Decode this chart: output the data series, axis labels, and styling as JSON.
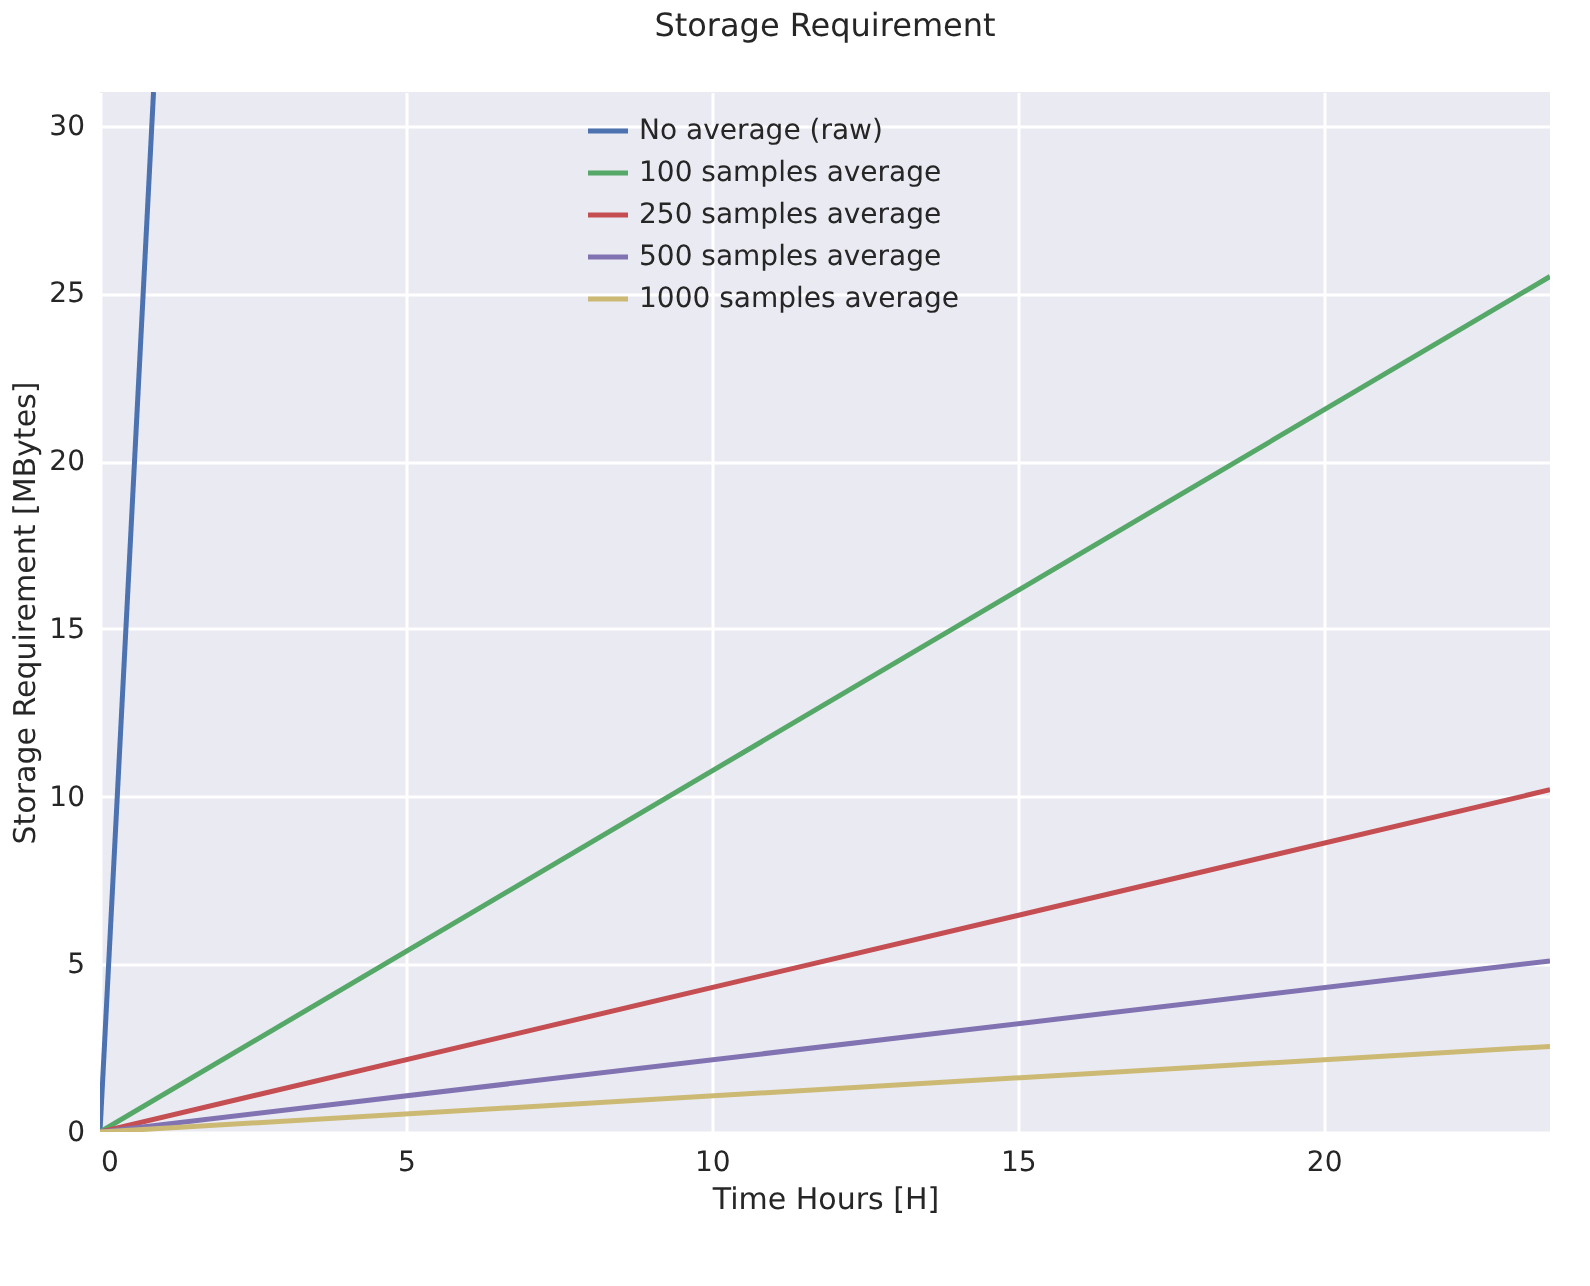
{
  "chart_data": {
    "type": "line",
    "title": "Storage Requirement",
    "xlabel": "Time Hours [H]",
    "ylabel": "Storage Requirement [MBytes]",
    "x": [
      0,
      23.7
    ],
    "xlim": [
      0,
      23.7
    ],
    "ylim": [
      0,
      31
    ],
    "xticks": [
      0,
      5,
      10,
      15,
      20
    ],
    "yticks": [
      0,
      5,
      10,
      15,
      20,
      25,
      30
    ],
    "grid": true,
    "legend": "top",
    "marker": "none",
    "line_style": "solid",
    "series": [
      {
        "name": "No average (raw)",
        "color": "#4c72b0",
        "x": [
          0,
          0.875
        ],
        "values": [
          0,
          31
        ]
      },
      {
        "name": "100 samples average",
        "color": "#55a868",
        "values": [
          0,
          25.5
        ]
      },
      {
        "name": "250 samples average",
        "color": "#c44e52",
        "values": [
          0,
          10.2
        ]
      },
      {
        "name": "500 samples average",
        "color": "#8172b2",
        "values": [
          0,
          5.1
        ]
      },
      {
        "name": "1000 samples average",
        "color": "#ccb974",
        "values": [
          0,
          2.55
        ]
      }
    ]
  }
}
